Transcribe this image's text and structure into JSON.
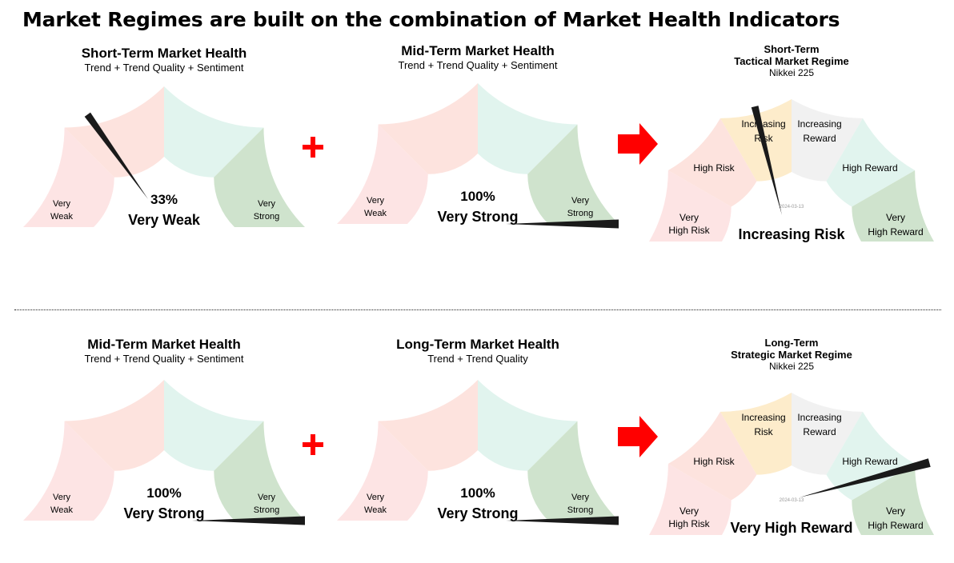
{
  "page_title": "Market Regimes are built on the combination of Market Health Indicators",
  "colors": {
    "very_weak": "#fde4e4",
    "weak": "#fde3de",
    "strong": "#e1f4ee",
    "very_strong": "#cfe3cd",
    "increasing_risk": "#fdeccb",
    "increasing_reward": "#f1f1f1",
    "high_reward": "#e1f4ee",
    "needle": "#1a1a1a",
    "operator_red": "#ff0000"
  },
  "chart_data": [
    {
      "type": "gauge",
      "title": "Short-Term Market Health",
      "subtitle": "Trend + Trend Quality + Sentiment",
      "value": 33,
      "value_label": "33%",
      "status_label": "Very Weak",
      "range": [
        0,
        100
      ],
      "zones": [
        "Very Weak",
        "Weak",
        "Strong",
        "Very Strong"
      ],
      "zone_labels": [
        [
          "Very",
          "Weak"
        ],
        [
          "Very",
          "Strong"
        ]
      ]
    },
    {
      "type": "gauge",
      "title": "Mid-Term Market Health",
      "subtitle": "Trend + Trend Quality + Sentiment",
      "value": 100,
      "value_label": "100%",
      "status_label": "Very Strong",
      "range": [
        0,
        100
      ],
      "zones": [
        "Very Weak",
        "Weak",
        "Strong",
        "Very Strong"
      ],
      "zone_labels": [
        [
          "Very",
          "Weak"
        ],
        [
          "Very",
          "Strong"
        ]
      ]
    },
    {
      "type": "gauge",
      "title": "Short-Term",
      "title_line2": "Tactical Market Regime",
      "subtitle": "Nikkei 225",
      "date": "2024-03-13",
      "regime": "Increasing Risk",
      "regimes": [
        "Very High Risk",
        "High Risk",
        "Increasing Risk",
        "Increasing Reward",
        "High Reward",
        "Very High Reward"
      ],
      "regime_labels": [
        [
          "Very",
          "High Risk"
        ],
        [
          "High Risk"
        ],
        [
          "Increasing",
          "Risk"
        ],
        [
          "Increasing",
          "Reward"
        ],
        [
          "High Reward"
        ],
        [
          "Very",
          "High Reward"
        ]
      ]
    },
    {
      "type": "gauge",
      "title": "Mid-Term Market Health",
      "subtitle": "Trend + Trend Quality + Sentiment",
      "value": 100,
      "value_label": "100%",
      "status_label": "Very Strong",
      "range": [
        0,
        100
      ],
      "zones": [
        "Very Weak",
        "Weak",
        "Strong",
        "Very Strong"
      ],
      "zone_labels": [
        [
          "Very",
          "Weak"
        ],
        [
          "Very",
          "Strong"
        ]
      ]
    },
    {
      "type": "gauge",
      "title": "Long-Term Market Health",
      "subtitle": "Trend + Trend Quality",
      "value": 100,
      "value_label": "100%",
      "status_label": "Very Strong",
      "range": [
        0,
        100
      ],
      "zones": [
        "Very Weak",
        "Weak",
        "Strong",
        "Very Strong"
      ],
      "zone_labels": [
        [
          "Very",
          "Weak"
        ],
        [
          "Very",
          "Strong"
        ]
      ]
    },
    {
      "type": "gauge",
      "title": "Long-Term",
      "title_line2": "Strategic Market Regime",
      "subtitle": "Nikkei 225",
      "date": "2024-03-13",
      "regime": "Very High Reward",
      "regimes": [
        "Very High Risk",
        "High Risk",
        "Increasing Risk",
        "Increasing Reward",
        "High Reward",
        "Very High Reward"
      ],
      "regime_labels": [
        [
          "Very",
          "High Risk"
        ],
        [
          "High Risk"
        ],
        [
          "Increasing",
          "Risk"
        ],
        [
          "Increasing",
          "Reward"
        ],
        [
          "High Reward"
        ],
        [
          "Very",
          "High Reward"
        ]
      ]
    }
  ],
  "operators": [
    {
      "symbol": "+",
      "meaning": "plus"
    },
    {
      "symbol": "+",
      "meaning": "plus"
    }
  ]
}
